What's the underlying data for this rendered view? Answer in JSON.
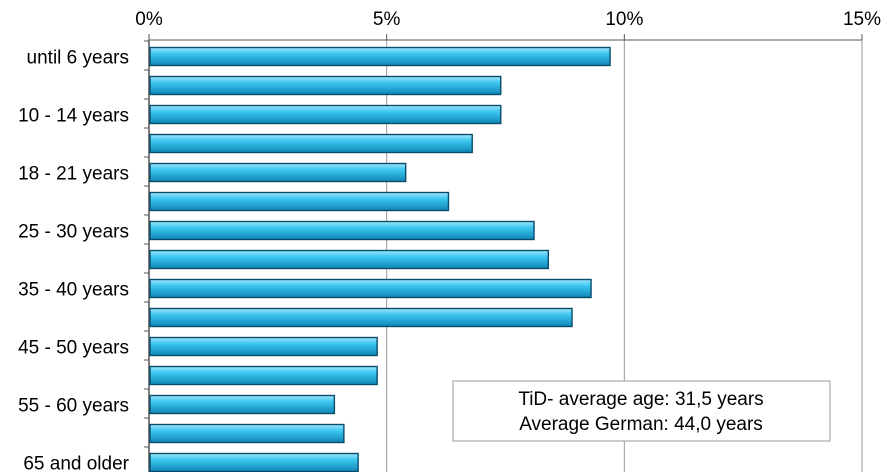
{
  "chart_data": {
    "type": "bar",
    "orientation": "horizontal",
    "categories": [
      "until 6 years",
      "",
      "10 - 14 years",
      "",
      "18 - 21 years",
      "",
      "25 - 30 years",
      "",
      "35 - 40 years",
      "",
      "45 - 50 years",
      "",
      "55 - 60 years",
      "",
      "65 and older"
    ],
    "values": [
      9.7,
      7.4,
      7.4,
      6.8,
      5.4,
      6.3,
      8.1,
      8.4,
      9.3,
      8.9,
      4.8,
      4.8,
      3.9,
      4.1,
      4.4
    ],
    "x_ticks": [
      "0%",
      "5%",
      "10%",
      "15%"
    ],
    "xlim": [
      0,
      15
    ],
    "axis_position": "top",
    "grid": true,
    "bar_color": "#1eb4e4",
    "annotation": {
      "line1": "TiD- average age: 31,5 years",
      "line2": "Average German: 44,0 years"
    }
  }
}
